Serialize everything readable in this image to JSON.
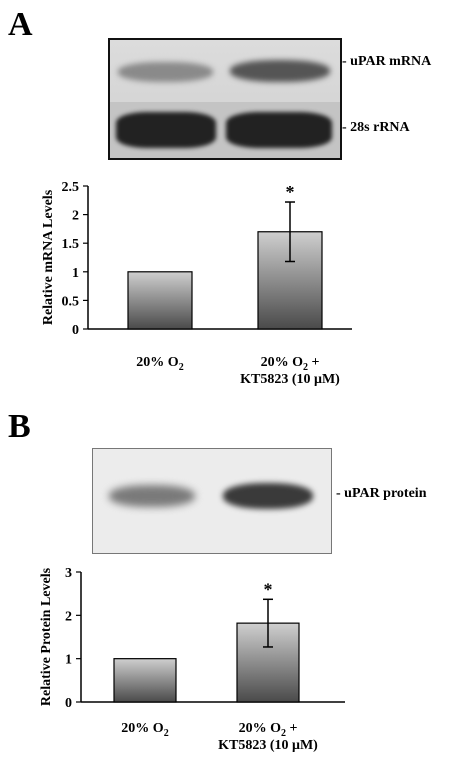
{
  "panels": [
    {
      "letter": "A",
      "blot_labels": [
        "- uPAR mRNA",
        "- 28s rRNA"
      ]
    },
    {
      "letter": "B",
      "blot_labels": [
        "- uPAR protein"
      ]
    }
  ],
  "colors": {
    "bar_top": "#cfcfcf",
    "bar_bottom": "#4a4a4a",
    "axis": "#000000"
  },
  "chart_data": [
    {
      "type": "bar",
      "categories": [
        {
          "line1": "20% O",
          "sub": "2",
          "line2": ""
        },
        {
          "line1": "20% O",
          "sub": "2",
          "tail": " +",
          "line2": "KT5823 (10 μM)"
        }
      ],
      "values": [
        1.0,
        1.7
      ],
      "errors": [
        0,
        0.52
      ],
      "significance": [
        "",
        "*"
      ],
      "ylabel": "Relative mRNA Levels",
      "ylim": [
        0,
        2.5
      ],
      "yticks": [
        "0",
        "0.5",
        "1",
        "1.5",
        "2",
        "2.5"
      ],
      "ytick_values": [
        0,
        0.5,
        1,
        1.5,
        2,
        2.5
      ]
    },
    {
      "type": "bar",
      "categories": [
        {
          "line1": "20% O",
          "sub": "2",
          "line2": ""
        },
        {
          "line1": "20% O",
          "sub": "2",
          "tail": " +",
          "line2": "KT5823 (10 μM)"
        }
      ],
      "values": [
        1.0,
        1.82
      ],
      "errors": [
        0,
        0.55
      ],
      "significance": [
        "",
        "*"
      ],
      "ylabel": "Relative Protein Levels",
      "ylim": [
        0,
        3
      ],
      "yticks": [
        "0",
        "1",
        "2",
        "3"
      ],
      "ytick_values": [
        0,
        1,
        2,
        3
      ]
    }
  ]
}
